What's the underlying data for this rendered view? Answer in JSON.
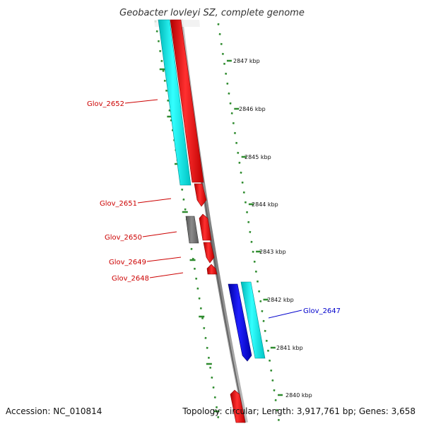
{
  "title": "Geobacter lovleyi SZ, complete genome",
  "accession": "Accession: NC_010814",
  "summary": "Topology: circular; Length: 3,917,761 bp; Genes: 3,658",
  "colors": {
    "tick": "#2e8b2e",
    "backbone": "#8f8f8f",
    "red": "#ff0000",
    "cyan": "#00e6e6",
    "blue": "#0000e6",
    "grey": "#6f6f6f",
    "labelRed": "#cc0000",
    "labelBlue": "#0000cc"
  },
  "ticks": [
    {
      "label": "2847 kbp"
    },
    {
      "label": "2846 kbp"
    },
    {
      "label": "2845 kbp"
    },
    {
      "label": "2844 kbp"
    },
    {
      "label": "2843 kbp"
    },
    {
      "label": "2842 kbp"
    },
    {
      "label": "2841 kbp"
    },
    {
      "label": "2840 kbp"
    }
  ],
  "genes": [
    {
      "id": "Glov_2652",
      "color": "red"
    },
    {
      "id": "Glov_2651",
      "color": "red"
    },
    {
      "id": "Glov_2650",
      "color": "red"
    },
    {
      "id": "Glov_2649",
      "color": "red"
    },
    {
      "id": "Glov_2648",
      "color": "red"
    },
    {
      "id": "Glov_2647",
      "color": "blue"
    }
  ]
}
